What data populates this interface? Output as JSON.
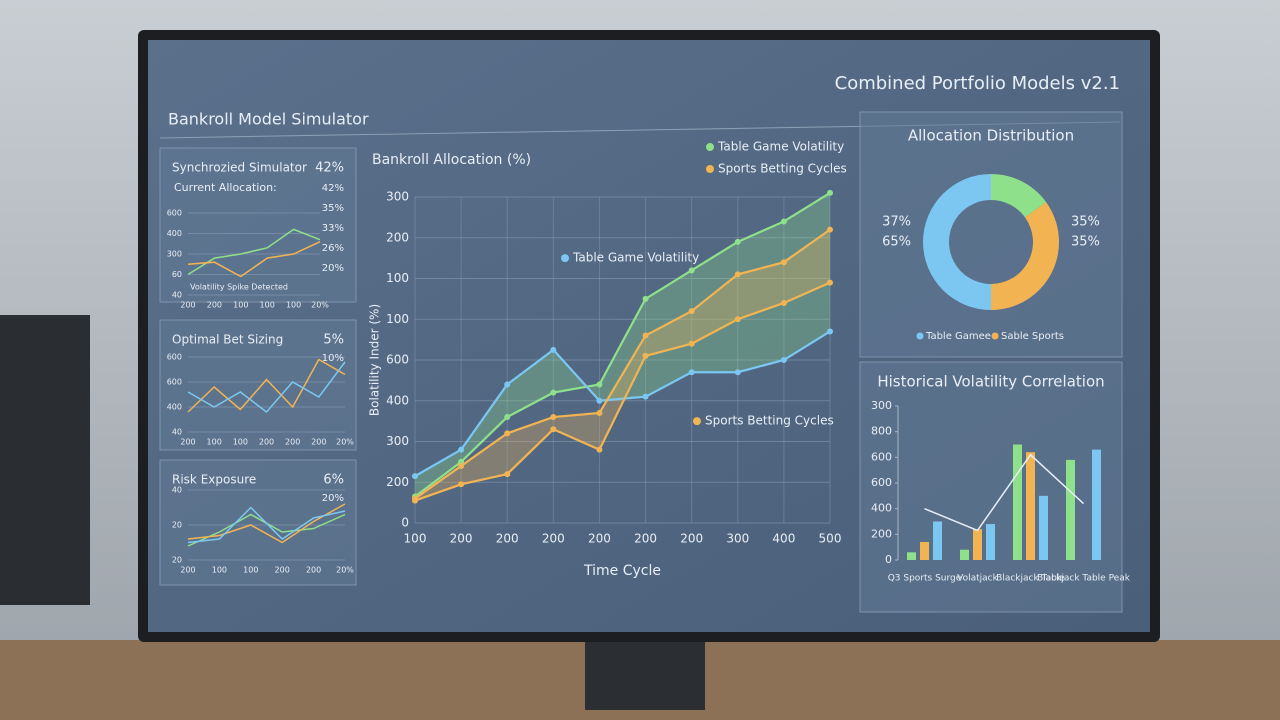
{
  "header": {
    "title": "Bankroll Model Simulator",
    "subtitle": "Combined Portfolio Models v2.1"
  },
  "chart_data": [
    {
      "type": "line",
      "title": "Synchrozied Simulator",
      "subtitle": "Current Allocation:",
      "headline": "42%",
      "side_labels": [
        "42%",
        "35%",
        "33%",
        "26%",
        "20%"
      ],
      "y_labels": [
        "40",
        "60",
        "300",
        "400",
        "600"
      ],
      "categories": [
        "200",
        "200",
        "100",
        "100",
        "100",
        "20%"
      ],
      "annotation": "Volatility Spike Detected",
      "series": [
        {
          "color": "#8fe08a",
          "values": [
            1.0,
            1.8,
            2.0,
            2.3,
            3.2,
            2.7
          ]
        },
        {
          "color": "#f2b452",
          "values": [
            1.5,
            1.6,
            0.9,
            1.8,
            2.0,
            2.6
          ]
        }
      ]
    },
    {
      "type": "line",
      "title": "Optimal Bet Sizing",
      "headline": "5%",
      "side_labels": [
        "10%"
      ],
      "y_labels": [
        "40",
        "400",
        "600",
        "600"
      ],
      "categories": [
        "200",
        "100",
        "100",
        "200",
        "200",
        "200",
        "20%"
      ],
      "series": [
        {
          "color": "#f2b452",
          "values": [
            0.8,
            1.8,
            0.9,
            2.1,
            1.0,
            2.9,
            2.3
          ]
        },
        {
          "color": "#7cc7f2",
          "values": [
            1.6,
            1.0,
            1.6,
            0.8,
            2.0,
            1.4,
            2.8
          ]
        }
      ]
    },
    {
      "type": "line",
      "title": "Risk Exposure",
      "headline": "6%",
      "side_labels": [
        "20%"
      ],
      "y_labels": [
        "20",
        "20",
        "40"
      ],
      "categories": [
        "200",
        "100",
        "100",
        "200",
        "200",
        "20%"
      ],
      "series": [
        {
          "color": "#8fe08a",
          "values": [
            0.4,
            0.8,
            1.3,
            0.8,
            0.9,
            1.3
          ]
        },
        {
          "color": "#f2b452",
          "values": [
            0.6,
            0.7,
            1.0,
            0.5,
            1.1,
            1.6
          ]
        },
        {
          "color": "#7cc7f2",
          "values": [
            0.5,
            0.6,
            1.5,
            0.6,
            1.2,
            1.4
          ]
        }
      ]
    },
    {
      "type": "line",
      "title": "Bankroll Allocation (%)",
      "xlabel": "Time Cycle",
      "ylabel": "Bolatility Inder (%)",
      "shaded": true,
      "grid": true,
      "legend": "top-right",
      "y_labels": [
        "0",
        "200",
        "300",
        "400",
        "600",
        "100",
        "100",
        "200",
        "300"
      ],
      "categories": [
        "100",
        "200",
        "200",
        "200",
        "200",
        "200",
        "200",
        "300",
        "400",
        "500"
      ],
      "annotations": [
        "Table Game Volatility",
        "Sports Betting Cycles"
      ],
      "series": [
        {
          "name": "Table Game Volatility",
          "color": "#8fe08a",
          "values": [
            0.65,
            1.5,
            2.6,
            3.2,
            3.4,
            5.5,
            6.2,
            6.9,
            7.4,
            8.1
          ]
        },
        {
          "color": "#7cc7f2",
          "values": [
            1.15,
            1.8,
            3.4,
            4.25,
            3.0,
            3.1,
            3.7,
            3.7,
            4.0,
            4.7
          ]
        },
        {
          "name": "Sports Betting Cycles",
          "color": "#f2b452",
          "values": [
            0.6,
            1.4,
            2.2,
            2.6,
            2.7,
            4.6,
            5.2,
            6.1,
            6.4,
            7.2
          ]
        },
        {
          "color": "#f2b452",
          "values": [
            0.55,
            0.95,
            1.2,
            2.3,
            1.8,
            4.1,
            4.4,
            5.0,
            5.4,
            5.9
          ]
        }
      ]
    },
    {
      "type": "donut",
      "title": "Allocation Distribution",
      "values": [
        15,
        35,
        50
      ],
      "colors": [
        "#8fe08a",
        "#f2b452",
        "#7cc7f2"
      ],
      "side_labels": [
        "37%",
        "65%",
        "35%",
        "35%"
      ],
      "legend": [
        {
          "name": "Table Gamee",
          "color": "#7cc7f2"
        },
        {
          "name": "Sable Sports",
          "color": "#f2b452"
        }
      ]
    },
    {
      "type": "bar",
      "title": "Historical Volatility Correlation",
      "y_labels": [
        "0",
        "200",
        "400",
        "600",
        "600",
        "800",
        "300"
      ],
      "categories": [
        "Q3 Sports Surge",
        "Volatjack",
        "Blackjack Table",
        "Blackjack Table Peak"
      ],
      "series": [
        {
          "color": "#8fe08a",
          "values": [
            0.3,
            0.4,
            4.5,
            3.9
          ]
        },
        {
          "color": "#f2b452",
          "values": [
            0.7,
            1.2,
            4.2,
            null
          ]
        },
        {
          "color": "#7cc7f2",
          "values": [
            1.5,
            1.4,
            2.5,
            4.3
          ]
        }
      ],
      "line": {
        "color": "#e8eef5",
        "values": [
          2.0,
          1.15,
          4.1,
          2.2
        ]
      }
    }
  ]
}
